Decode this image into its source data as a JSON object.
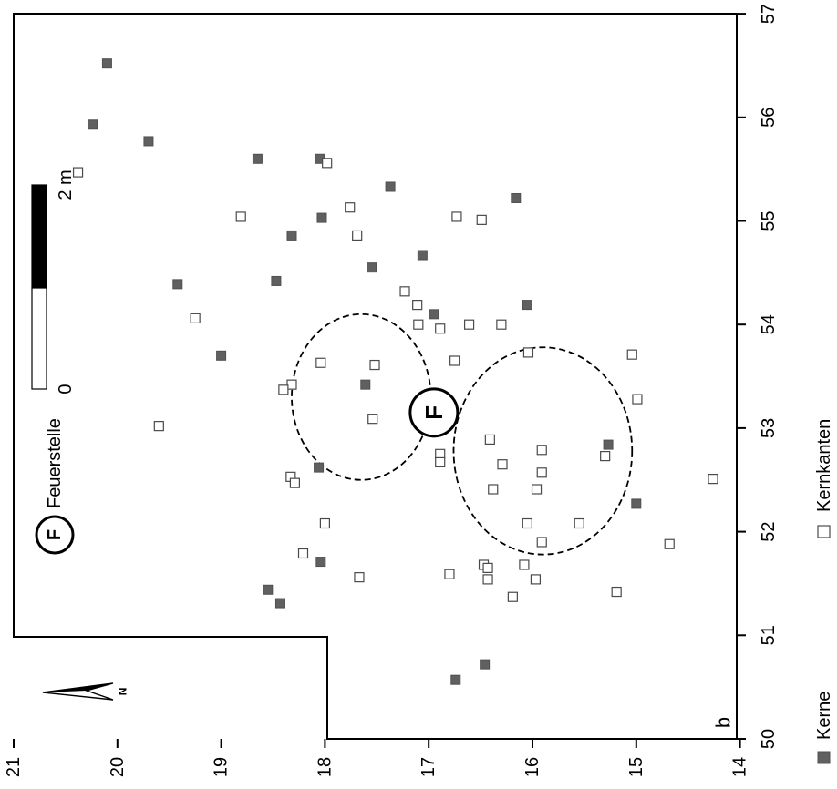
{
  "chart_data": {
    "type": "scatter",
    "x_axis": {
      "ticks": [
        50,
        51,
        52,
        53,
        54,
        55,
        56,
        57
      ],
      "range": [
        50,
        57
      ]
    },
    "y_axis": {
      "ticks": [
        14,
        15,
        16,
        17,
        18,
        19,
        20,
        21
      ],
      "range": [
        14,
        21
      ]
    },
    "series": [
      {
        "name": "Kerne",
        "marker": "filled-square",
        "color": "#606060",
        "points": [
          [
            56.52,
            20.1
          ],
          [
            55.93,
            20.24
          ],
          [
            55.77,
            19.7
          ],
          [
            55.6,
            18.65
          ],
          [
            55.6,
            18.05
          ],
          [
            55.33,
            17.37
          ],
          [
            55.22,
            16.16
          ],
          [
            55.03,
            18.03
          ],
          [
            54.86,
            18.32
          ],
          [
            54.67,
            17.06
          ],
          [
            54.55,
            17.55
          ],
          [
            54.42,
            18.47
          ],
          [
            54.39,
            19.42
          ],
          [
            54.19,
            16.05
          ],
          [
            54.1,
            16.95
          ],
          [
            53.7,
            19.0
          ],
          [
            53.42,
            17.61
          ],
          [
            52.62,
            18.06
          ],
          [
            52.84,
            15.27
          ],
          [
            52.27,
            15.0
          ],
          [
            51.71,
            18.04
          ],
          [
            51.44,
            18.55
          ],
          [
            51.31,
            18.43
          ],
          [
            50.72,
            16.46
          ],
          [
            50.57,
            16.74
          ]
        ]
      },
      {
        "name": "Kernkanten",
        "marker": "open-square",
        "color": "#ffffff",
        "points": [
          [
            55.47,
            20.38
          ],
          [
            55.56,
            17.98
          ],
          [
            55.13,
            17.76
          ],
          [
            55.04,
            18.81
          ],
          [
            55.04,
            16.73
          ],
          [
            55.01,
            16.49
          ],
          [
            54.86,
            17.69
          ],
          [
            54.32,
            17.23
          ],
          [
            54.19,
            17.11
          ],
          [
            54.06,
            19.25
          ],
          [
            54.0,
            17.1
          ],
          [
            54.0,
            16.61
          ],
          [
            54.0,
            16.3
          ],
          [
            53.96,
            16.89
          ],
          [
            53.73,
            16.04
          ],
          [
            53.71,
            15.04
          ],
          [
            53.65,
            16.75
          ],
          [
            53.63,
            18.04
          ],
          [
            53.61,
            17.52
          ],
          [
            53.42,
            18.32
          ],
          [
            53.37,
            18.4
          ],
          [
            53.28,
            14.99
          ],
          [
            53.09,
            17.54
          ],
          [
            53.02,
            19.6
          ],
          [
            52.89,
            16.41
          ],
          [
            52.79,
            15.91
          ],
          [
            52.75,
            16.89
          ],
          [
            52.73,
            15.3
          ],
          [
            52.67,
            16.89
          ],
          [
            52.65,
            16.29
          ],
          [
            52.57,
            15.91
          ],
          [
            52.53,
            18.33
          ],
          [
            52.51,
            14.26
          ],
          [
            52.47,
            18.29
          ],
          [
            52.41,
            16.38
          ],
          [
            52.41,
            15.96
          ],
          [
            52.08,
            16.05
          ],
          [
            52.08,
            18.0
          ],
          [
            52.08,
            15.55
          ],
          [
            51.9,
            15.91
          ],
          [
            51.88,
            14.68
          ],
          [
            51.79,
            18.21
          ],
          [
            51.68,
            16.47
          ],
          [
            51.68,
            16.08
          ],
          [
            51.65,
            16.43
          ],
          [
            51.59,
            16.8
          ],
          [
            51.56,
            17.67
          ],
          [
            51.54,
            15.97
          ],
          [
            51.54,
            16.43
          ],
          [
            51.42,
            15.19
          ],
          [
            51.37,
            16.19
          ]
        ]
      }
    ],
    "annotations": {
      "hearth_label": "F",
      "hearth_position": [
        53.15,
        16.95
      ],
      "ellipses": [
        {
          "center": [
            53.3,
            17.65
          ],
          "radius_x": 0.8,
          "radius_y": 0.67,
          "style": "dashed"
        },
        {
          "center": [
            52.78,
            15.9
          ],
          "radius_x": 1.0,
          "radius_y": 0.86,
          "style": "dashed"
        }
      ],
      "panel_letter": "b"
    },
    "legend": {
      "items": [
        {
          "label": "Kerne",
          "marker": "filled-square"
        },
        {
          "label": "Kernkanten",
          "marker": "open-square"
        }
      ],
      "hearth": {
        "symbol": "F",
        "label": "Feuerstelle"
      },
      "placement": "right side, rotated"
    },
    "scale_bar": {
      "start_label": "0",
      "end_label": "2 m"
    },
    "north_arrow": {
      "label": "N"
    },
    "grid": false,
    "orientation": "rotated 90° clockwise"
  }
}
